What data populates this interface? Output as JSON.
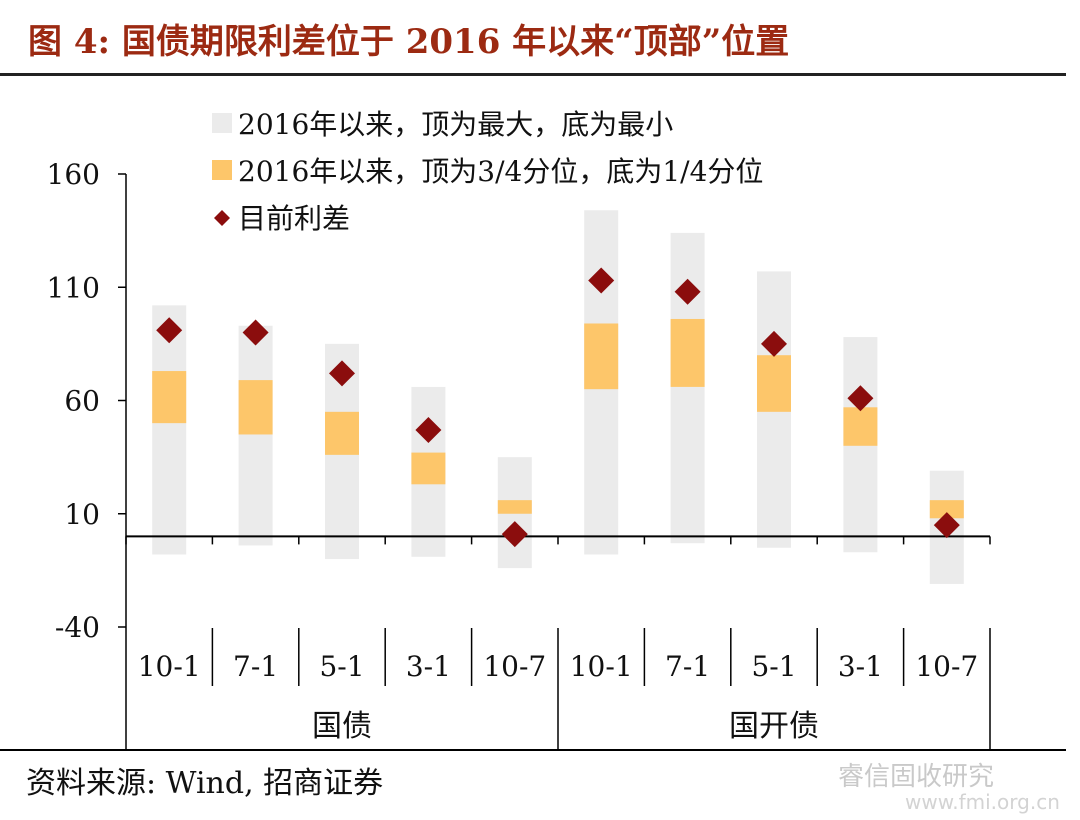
{
  "title": "图 4:  国债期限利差位于 2016 年以来“顶部”位置",
  "source": "资料来源:  Wind,  招商证券",
  "watermark": "睿信固收研究",
  "watermark_url": "www.fmi.org.cn",
  "colors": {
    "range": "#ebebeb",
    "iqr": "#fdc66a",
    "current": "#8b0d0d",
    "title": "#9c2a12",
    "axis": "#000000"
  },
  "chart_data": {
    "type": "bar",
    "legend": [
      {
        "key": "range",
        "label": "2016年以来，顶为最大，底为最小",
        "marker": "square"
      },
      {
        "key": "iqr",
        "label": "2016年以来，顶为3/4分位，底为1/4分位",
        "marker": "square"
      },
      {
        "key": "current",
        "label": "目前利差",
        "marker": "diamond"
      }
    ],
    "legend_position": "top",
    "ylim": [
      -40,
      160
    ],
    "yticks": [
      -40,
      10,
      60,
      110,
      160
    ],
    "ytick_labels": [
      "-40",
      "10",
      "60",
      "110",
      "160"
    ],
    "zero_line": 0,
    "groups": [
      {
        "name": "国债",
        "categories": [
          "10-1",
          "7-1",
          "5-1",
          "3-1",
          "10-7"
        ]
      },
      {
        "name": "国开债",
        "categories": [
          "10-1",
          "7-1",
          "5-1",
          "3-1",
          "10-7"
        ]
      }
    ],
    "categories": [
      "10-1",
      "7-1",
      "5-1",
      "3-1",
      "10-7",
      "10-1",
      "7-1",
      "5-1",
      "3-1",
      "10-7"
    ],
    "range_min": [
      -8,
      -4,
      -10,
      -9,
      -14,
      -8,
      -3,
      -5,
      -7,
      -21
    ],
    "range_max": [
      102,
      93,
      85,
      66,
      35,
      144,
      134,
      117,
      88,
      29
    ],
    "q1": [
      50,
      45,
      36,
      23,
      10,
      65,
      66,
      55,
      40,
      8
    ],
    "q3": [
      73,
      69,
      55,
      37,
      16,
      94,
      96,
      80,
      57,
      16
    ],
    "current": [
      91,
      90,
      72,
      47,
      1,
      113,
      108,
      85,
      61,
      5
    ]
  }
}
